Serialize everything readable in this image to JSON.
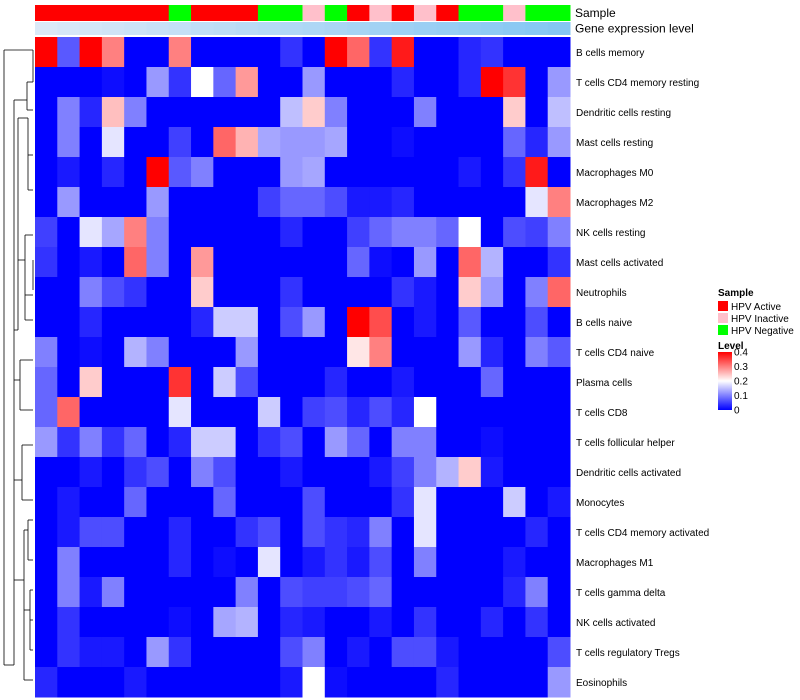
{
  "chart_data": {
    "type": "heatmap",
    "annotation_rows": [
      {
        "label": "Sample",
        "variable": "sample_group"
      },
      {
        "label": "Gene expression level",
        "variable": "gene_expression"
      }
    ],
    "column_annotations": {
      "sample_group": [
        "HPV Active",
        "HPV Active",
        "HPV Active",
        "HPV Active",
        "HPV Active",
        "HPV Active",
        "HPV Negative",
        "HPV Active",
        "HPV Active",
        "HPV Active",
        "HPV Negative",
        "HPV Negative",
        "HPV Inactive",
        "HPV Negative",
        "HPV Active",
        "HPV Inactive",
        "HPV Active",
        "HPV Inactive",
        "HPV Active",
        "HPV Negative",
        "HPV Negative",
        "HPV Inactive",
        "HPV Negative",
        "HPV Negative"
      ],
      "gene_expression": [
        0.0,
        0.04,
        0.08,
        0.12,
        0.16,
        0.2,
        0.24,
        0.28,
        0.32,
        0.36,
        0.4,
        0.44,
        0.48,
        0.52,
        0.56,
        0.6,
        0.64,
        0.68,
        0.72,
        0.76,
        0.8,
        0.84,
        0.88,
        0.92
      ]
    },
    "rows": [
      "B cells memory",
      "T cells CD4 memory resting",
      "Dendritic cells resting",
      "Mast cells resting",
      "Macrophages M0",
      "Macrophages M2",
      "NK cells resting",
      "Mast cells activated",
      "Neutrophils",
      "B cells naive",
      "T cells CD4 naive",
      "Plasma cells",
      "T cells CD8",
      "T cells follicular helper",
      "Dendritic cells activated",
      "Monocytes",
      "T cells CD4 memory activated",
      "Macrophages M1",
      "T cells gamma delta",
      "NK cells activated",
      "T cells regulatory  Tregs",
      "Eosinophils"
    ],
    "values": [
      [
        0.4,
        0.07,
        0.4,
        0.3,
        0,
        0,
        0.3,
        0,
        0,
        0,
        0,
        0.04,
        0,
        0.4,
        0.32,
        0.04,
        0.38,
        0,
        0,
        0.03,
        0.04,
        0,
        0,
        0
      ],
      [
        0,
        0,
        0,
        0.01,
        0,
        0.12,
        0.04,
        0.2,
        0.08,
        0.28,
        0,
        0,
        0.12,
        0,
        0,
        0,
        0.03,
        0,
        0,
        0.03,
        0.4,
        0.36,
        0,
        0.12
      ],
      [
        0,
        0.1,
        0.03,
        0.25,
        0.1,
        0,
        0,
        0,
        0,
        0,
        0,
        0.15,
        0.24,
        0.1,
        0,
        0,
        0,
        0.1,
        0,
        0,
        0,
        0.24,
        0,
        0.15
      ],
      [
        0,
        0.1,
        0,
        0.18,
        0,
        0,
        0.05,
        0,
        0.32,
        0.26,
        0.13,
        0.12,
        0.12,
        0.13,
        0,
        0,
        0.01,
        0,
        0,
        0,
        0,
        0.08,
        0.03,
        0.12
      ],
      [
        0,
        0.02,
        0,
        0.03,
        0,
        0.4,
        0.07,
        0.1,
        0,
        0,
        0,
        0.12,
        0.13,
        0,
        0,
        0,
        0,
        0,
        0,
        0.02,
        0,
        0.04,
        0.38,
        0
      ],
      [
        0,
        0.12,
        0,
        0,
        0,
        0.12,
        0,
        0,
        0,
        0,
        0.05,
        0.08,
        0.08,
        0.06,
        0.02,
        0.02,
        0.03,
        0,
        0,
        0,
        0,
        0,
        0.18,
        0.3
      ],
      [
        0.05,
        0,
        0.18,
        0.13,
        0.3,
        0.1,
        0,
        0,
        0,
        0,
        0,
        0.03,
        0,
        0,
        0.05,
        0.08,
        0.1,
        0.1,
        0.08,
        0.2,
        0,
        0.06,
        0.05,
        0.1
      ],
      [
        0.04,
        0,
        0.02,
        0,
        0.32,
        0.1,
        0,
        0.28,
        0,
        0,
        0,
        0,
        0,
        0,
        0.08,
        0.01,
        0,
        0.12,
        0,
        0.32,
        0.14,
        0,
        0,
        0.04
      ],
      [
        0,
        0,
        0.1,
        0.06,
        0.04,
        0,
        0,
        0.24,
        0,
        0,
        0,
        0.04,
        0,
        0,
        0,
        0,
        0.04,
        0.02,
        0,
        0.24,
        0.12,
        0,
        0.1,
        0.32
      ],
      [
        0,
        0,
        0.03,
        0,
        0,
        0,
        0,
        0.03,
        0.16,
        0.16,
        0,
        0.06,
        0.12,
        0,
        0.4,
        0.34,
        0,
        0.02,
        0,
        0.07,
        0,
        0,
        0.06,
        0
      ],
      [
        0.1,
        0,
        0.01,
        0,
        0.14,
        0.1,
        0,
        0,
        0,
        0.12,
        0,
        0,
        0,
        0,
        0.22,
        0.3,
        0,
        0,
        0,
        0.12,
        0.03,
        0,
        0.1,
        0.07
      ],
      [
        0.08,
        0,
        0.24,
        0,
        0,
        0,
        0.36,
        0,
        0.16,
        0.06,
        0,
        0,
        0,
        0.03,
        0,
        0,
        0.02,
        0,
        0,
        0,
        0.08,
        0,
        0,
        0
      ],
      [
        0.08,
        0.32,
        0,
        0,
        0,
        0,
        0.18,
        0,
        0,
        0,
        0.16,
        0,
        0.05,
        0.06,
        0.03,
        0.06,
        0.03,
        0.2,
        0,
        0,
        0,
        0,
        0,
        0
      ],
      [
        0.12,
        0.04,
        0.1,
        0.04,
        0.08,
        0,
        0.03,
        0.16,
        0.16,
        0,
        0.04,
        0.06,
        0,
        0.12,
        0.08,
        0,
        0.1,
        0.1,
        0,
        0,
        0.01,
        0,
        0,
        0
      ],
      [
        0,
        0,
        0.02,
        0,
        0.04,
        0.06,
        0,
        0.1,
        0.06,
        0,
        0,
        0.02,
        0,
        0,
        0,
        0.02,
        0.05,
        0.1,
        0.14,
        0.24,
        0.02,
        0,
        0,
        0
      ],
      [
        0,
        0.02,
        0,
        0,
        0.08,
        0,
        0,
        0,
        0.08,
        0,
        0,
        0,
        0.06,
        0,
        0,
        0,
        0.04,
        0.18,
        0,
        0,
        0,
        0.16,
        0,
        0.02
      ],
      [
        0,
        0.02,
        0.06,
        0.06,
        0,
        0,
        0.03,
        0,
        0,
        0.04,
        0.06,
        0,
        0.06,
        0.04,
        0.03,
        0.1,
        0,
        0.18,
        0,
        0,
        0,
        0,
        0.03,
        0
      ],
      [
        0,
        0.1,
        0,
        0,
        0,
        0,
        0.03,
        0,
        0.01,
        0,
        0.18,
        0,
        0.02,
        0.04,
        0.02,
        0.06,
        0,
        0.1,
        0,
        0,
        0,
        0.02,
        0,
        0
      ],
      [
        0,
        0.1,
        0.02,
        0.1,
        0,
        0,
        0,
        0,
        0,
        0.1,
        0,
        0.06,
        0.05,
        0.05,
        0.06,
        0.08,
        0,
        0,
        0,
        0,
        0,
        0.03,
        0.1,
        0
      ],
      [
        0,
        0.04,
        0,
        0,
        0,
        0,
        0.01,
        0,
        0.13,
        0.14,
        0,
        0.03,
        0.02,
        0,
        0,
        0.02,
        0,
        0.04,
        0,
        0,
        0.03,
        0,
        0.04,
        0
      ],
      [
        0,
        0.04,
        0.02,
        0.02,
        0,
        0.12,
        0.04,
        0,
        0,
        0,
        0,
        0.06,
        0.1,
        0,
        0.02,
        0,
        0.06,
        0.06,
        0.02,
        0,
        0,
        0,
        0,
        0.06
      ],
      [
        0.03,
        0,
        0,
        0,
        0.02,
        0,
        0,
        0,
        0,
        0,
        0,
        0.02,
        0.2,
        0.01,
        0,
        0,
        0,
        0,
        0.03,
        0,
        0,
        0,
        0,
        0.12
      ]
    ],
    "legend": {
      "sample": {
        "title": "Sample",
        "entries": [
          {
            "label": "HPV Active",
            "color": "#ff0000"
          },
          {
            "label": "HPV Inactive",
            "color": "#ffc0cb"
          },
          {
            "label": "HPV Negative",
            "color": "#00ff00"
          }
        ]
      },
      "level": {
        "title": "Level",
        "min": 0,
        "max": 0.4,
        "ticks": [
          "0.4",
          "0.3",
          "0.2",
          "0.1",
          "0"
        ],
        "tick_values": [
          0.4,
          0.3,
          0.2,
          0.1,
          0
        ],
        "colors": {
          "low": "#0000ff",
          "mid": "#ffffff",
          "high": "#ff0000"
        },
        "legend_placement": "right"
      }
    },
    "colors": {
      "low": "#0000ff",
      "mid": "#ffffff",
      "high": "#ff0000",
      "gene_expression_low": "#dbe9f7",
      "gene_expression_high": "#7cc3f2"
    },
    "dendrogram": "rows, left side",
    "grid": false
  }
}
